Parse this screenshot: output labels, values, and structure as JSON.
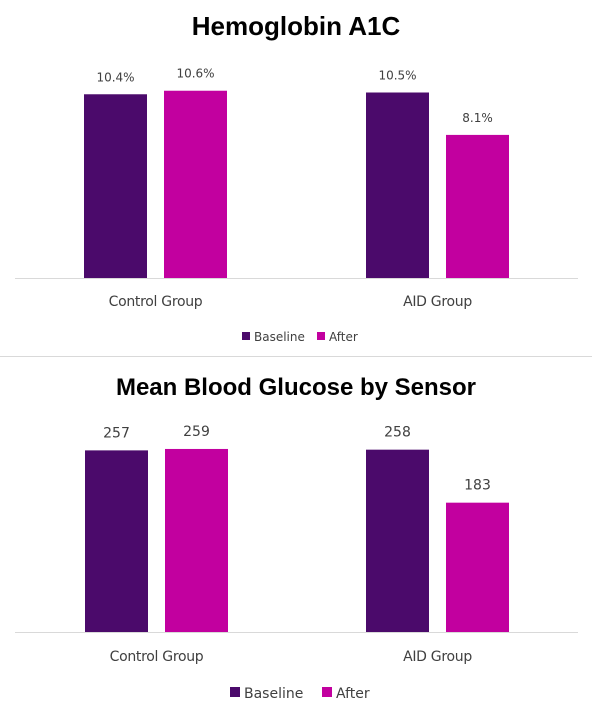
{
  "colors": {
    "baseline": "#4B0A6B",
    "after": "#C2009F",
    "axis": "#d9d9d9",
    "text": "#404040"
  },
  "chart_data": [
    {
      "type": "bar",
      "title": "Hemoglobin A1C",
      "categories": [
        "Control Group",
        "AID Group"
      ],
      "series": [
        {
          "name": "Baseline",
          "values": [
            10.4,
            10.5
          ],
          "labels": [
            "10.4%",
            "10.5%"
          ]
        },
        {
          "name": "After",
          "values": [
            10.6,
            8.1
          ],
          "labels": [
            "10.6%",
            "8.1%"
          ]
        }
      ],
      "ylim": [
        0,
        12
      ],
      "grid": false,
      "legend": "bottom"
    },
    {
      "type": "bar",
      "title": "Mean Blood Glucose by Sensor",
      "categories": [
        "Control Group",
        "AID Group"
      ],
      "series": [
        {
          "name": "Baseline",
          "values": [
            257,
            258
          ],
          "labels": [
            "257",
            "258"
          ]
        },
        {
          "name": "After",
          "values": [
            259,
            183
          ],
          "labels": [
            "259",
            "183"
          ]
        }
      ],
      "ylim": [
        0,
        283
      ],
      "grid": false,
      "legend": "bottom"
    }
  ]
}
